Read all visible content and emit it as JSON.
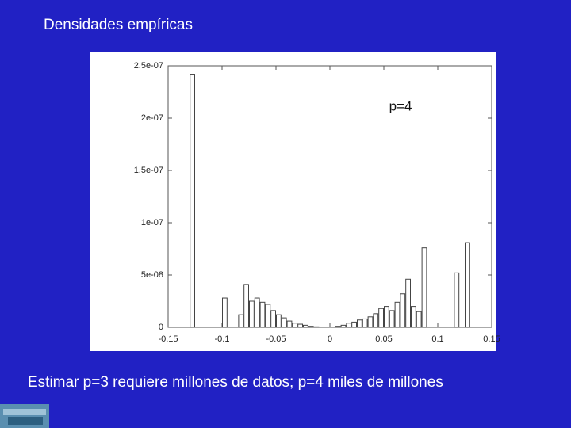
{
  "header": {
    "title": "Densidades empíricas"
  },
  "chart_data": {
    "type": "histogram",
    "annotation": "p=4",
    "bins": [
      -0.15,
      -0.145,
      -0.14,
      -0.135,
      -0.13,
      -0.125,
      -0.12,
      -0.115,
      -0.11,
      -0.105,
      -0.1,
      -0.095,
      -0.09,
      -0.085,
      -0.08,
      -0.075,
      -0.07,
      -0.065,
      -0.06,
      -0.055,
      -0.05,
      -0.045,
      -0.04,
      -0.035,
      -0.03,
      -0.025,
      -0.02,
      -0.015,
      -0.01,
      -0.005,
      0,
      0.005,
      0.01,
      0.015,
      0.02,
      0.025,
      0.03,
      0.035,
      0.04,
      0.045,
      0.05,
      0.055,
      0.06,
      0.065,
      0.07,
      0.075,
      0.08,
      0.085,
      0.09,
      0.095,
      0.1,
      0.105,
      0.11,
      0.115,
      0.12,
      0.125,
      0.13,
      0.135,
      0.14,
      0.145,
      0.15
    ],
    "values": [
      0,
      0,
      0,
      0,
      2.42e-07,
      0,
      0,
      0,
      0,
      0,
      2.8e-08,
      0,
      0,
      1.2e-08,
      4.1e-08,
      2.5e-08,
      2.8e-08,
      2.4e-08,
      2.2e-08,
      1.6e-08,
      1.2e-08,
      9e-09,
      6e-09,
      4e-09,
      3e-09,
      2e-09,
      1e-09,
      5e-10,
      0,
      0,
      0,
      1e-09,
      2e-09,
      4e-09,
      5e-09,
      7e-09,
      8e-09,
      1e-08,
      1.3e-08,
      1.8e-08,
      2e-08,
      1.6e-08,
      2.4e-08,
      3.2e-08,
      4.6e-08,
      2e-08,
      1.5e-08,
      7.6e-08,
      0,
      0,
      0,
      0,
      0,
      5.2e-08,
      0,
      8.1e-08,
      0,
      0,
      0,
      0
    ],
    "color": "#444444",
    "xlim": [
      -0.15,
      0.15
    ],
    "xticks": [
      -0.15,
      -0.1,
      -0.05,
      0,
      0.05,
      0.1,
      0.15
    ],
    "ylim": [
      0,
      2.5e-07
    ],
    "yticks": [
      0,
      {
        "value": 5e-08,
        "label": "5e-08"
      },
      {
        "value": 1e-07,
        "label": "1e-07"
      },
      {
        "value": 1.5e-07,
        "label": "1.5e-07"
      },
      {
        "value": 2e-07,
        "label": "2e-07"
      },
      {
        "value": 2.5e-07,
        "label": "2.5e-07"
      }
    ]
  },
  "footer": {
    "caption": "Estimar p=3 requiere millones de datos; p=4 miles de millones"
  }
}
